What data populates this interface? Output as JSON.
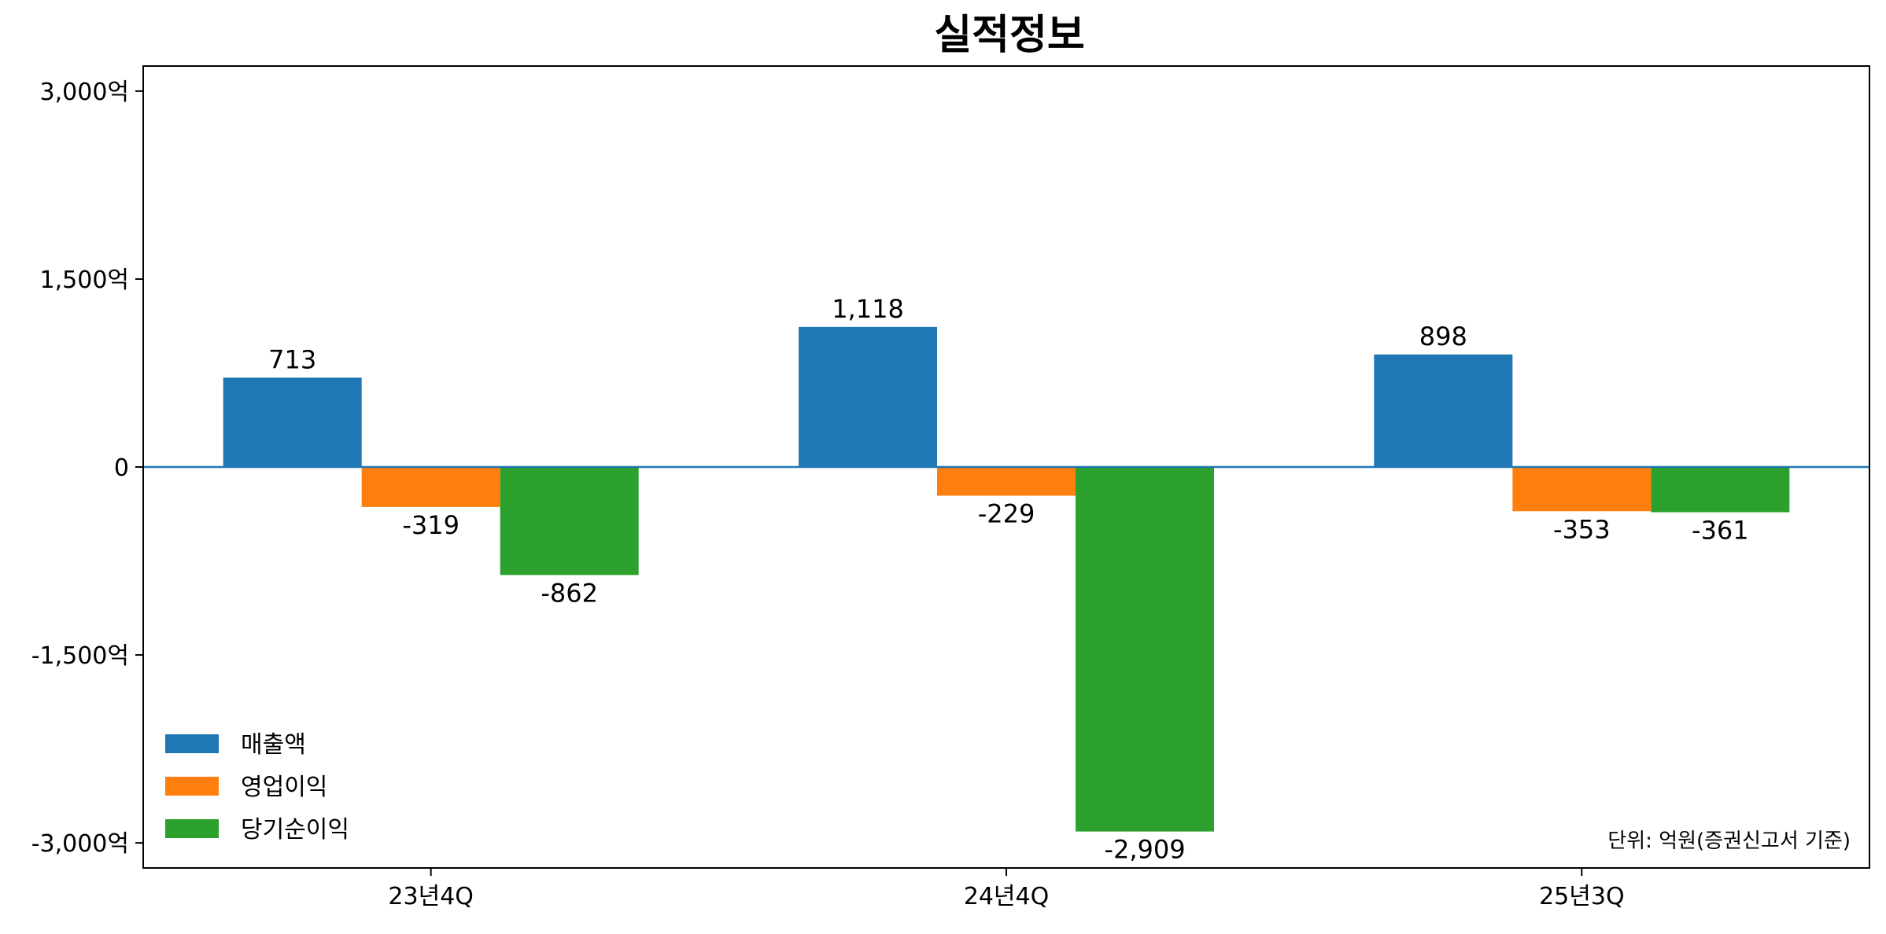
{
  "chart_data": {
    "type": "bar",
    "title": "실적정보",
    "categories": [
      "23년4Q",
      "24년4Q",
      "25년3Q"
    ],
    "series": [
      {
        "name": "매출액",
        "color": "#1f77b4",
        "values": [
          713,
          1118,
          898
        ],
        "labels": [
          "713",
          "1,118",
          "898"
        ]
      },
      {
        "name": "영업이익",
        "color": "#ff7f0e",
        "values": [
          -319,
          -229,
          -353
        ],
        "labels": [
          "-319",
          "-229",
          "-353"
        ]
      },
      {
        "name": "당기순이익",
        "color": "#2ca02c",
        "values": [
          -862,
          -2909,
          -361
        ],
        "labels": [
          "-862",
          "-2,909",
          "-361"
        ]
      }
    ],
    "ylim": [
      -3200,
      3200
    ],
    "yticks": [
      3000,
      1500,
      0,
      -1500,
      -3000
    ],
    "ytick_labels": [
      "3,000억",
      "1,500억",
      "0",
      "-1,500억",
      "-3,000억"
    ],
    "zero_line_color": "#1f77b4",
    "legend_position": "lower-left",
    "note": "단위: 억원(증권신고서 기준)",
    "grid": false
  }
}
